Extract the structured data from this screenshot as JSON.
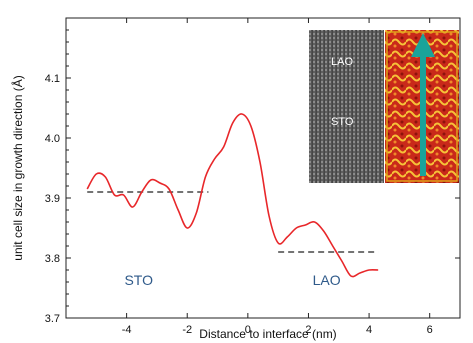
{
  "chart_data": {
    "type": "line",
    "xlabel": "Distance to interface (nm)",
    "ylabel": "unit cell size in growth direction (Å)",
    "xlim": [
      -6,
      7
    ],
    "ylim": [
      3.7,
      4.2
    ],
    "xticks": [
      -4,
      -2,
      0,
      2,
      4,
      6
    ],
    "yticks": [
      3.7,
      3.8,
      3.9,
      4.0,
      4.1
    ],
    "xtick_labels": [
      "-4",
      "-2",
      "0",
      "2",
      "4",
      "6"
    ],
    "ytick_labels": [
      "3.7",
      "3.8",
      "3.9",
      "4.0",
      "4.1"
    ],
    "series": [
      {
        "color": "#e8272a",
        "x": [
          -5.3,
          -5.0,
          -4.7,
          -4.4,
          -4.1,
          -3.8,
          -3.5,
          -3.2,
          -2.9,
          -2.6,
          -2.3,
          -2.0,
          -1.7,
          -1.4,
          -1.1,
          -0.8,
          -0.5,
          -0.2,
          0.1,
          0.4,
          0.7,
          1.0,
          1.3,
          1.6,
          1.9,
          2.2,
          2.5,
          2.8,
          3.1,
          3.4,
          3.7,
          4.0,
          4.3
        ],
        "y": [
          3.915,
          3.94,
          3.935,
          3.905,
          3.905,
          3.885,
          3.91,
          3.93,
          3.925,
          3.915,
          3.88,
          3.85,
          3.875,
          3.935,
          3.965,
          3.985,
          4.025,
          4.04,
          4.02,
          3.96,
          3.87,
          3.825,
          3.835,
          3.85,
          3.855,
          3.86,
          3.845,
          3.82,
          3.795,
          3.77,
          3.775,
          3.78,
          3.78
        ]
      }
    ],
    "reference_lines": [
      {
        "x": [
          -5.3,
          -1.3
        ],
        "y": 3.91
      },
      {
        "x": [
          1.0,
          4.3
        ],
        "y": 3.81
      }
    ],
    "annotations": [
      {
        "text": "STO",
        "x": -3.6,
        "y": 3.755
      },
      {
        "text": "LAO",
        "x": 2.6,
        "y": 3.755
      }
    ],
    "grid": false,
    "legend": "none"
  },
  "inset": {
    "labels": [
      "LAO",
      "STO"
    ]
  }
}
